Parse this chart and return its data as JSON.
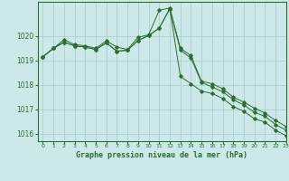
{
  "title": "Graphe pression niveau de la mer (hPa)",
  "bg_color": "#cce8e8",
  "grid_color": "#aad0d0",
  "line_color": "#2d6e2d",
  "xlim": [
    -0.5,
    23
  ],
  "ylim": [
    1015.7,
    1021.4
  ],
  "yticks": [
    1016,
    1017,
    1018,
    1019,
    1020
  ],
  "xticks": [
    0,
    1,
    2,
    3,
    4,
    5,
    6,
    7,
    8,
    9,
    10,
    11,
    12,
    13,
    14,
    15,
    16,
    17,
    18,
    19,
    20,
    21,
    22,
    23
  ],
  "series1_x": [
    0,
    1,
    2,
    3,
    4,
    5,
    6,
    7,
    8,
    9,
    10,
    11,
    12,
    13,
    14,
    15,
    16,
    17,
    18,
    19,
    20,
    21,
    22,
    23
  ],
  "series1_y": [
    1019.15,
    1019.5,
    1019.85,
    1019.65,
    1019.6,
    1019.5,
    1019.8,
    1019.55,
    1019.45,
    1019.95,
    1020.05,
    1021.05,
    1021.15,
    1019.5,
    1019.2,
    1018.15,
    1018.05,
    1017.85,
    1017.5,
    1017.3,
    1017.05,
    1016.85,
    1016.55,
    1016.3
  ],
  "series2_x": [
    0,
    1,
    2,
    3,
    4,
    5,
    6,
    7,
    8,
    9,
    10,
    11,
    12,
    13,
    14,
    15,
    16,
    17,
    18,
    19,
    20,
    21,
    22,
    23
  ],
  "series2_y": [
    1019.15,
    1019.5,
    1019.75,
    1019.6,
    1019.55,
    1019.45,
    1019.72,
    1019.38,
    1019.42,
    1019.82,
    1020.02,
    1020.32,
    1021.12,
    1019.42,
    1019.1,
    1018.1,
    1017.92,
    1017.72,
    1017.4,
    1017.18,
    1016.88,
    1016.72,
    1016.38,
    1016.15
  ],
  "series3_x": [
    0,
    1,
    2,
    3,
    4,
    5,
    6,
    7,
    8,
    9,
    10,
    11,
    12,
    13,
    14,
    15,
    16,
    17,
    18,
    19,
    20,
    21,
    22,
    23
  ],
  "series3_y": [
    1019.15,
    1019.5,
    1019.75,
    1019.6,
    1019.55,
    1019.45,
    1019.72,
    1019.38,
    1019.42,
    1019.82,
    1020.02,
    1020.32,
    1021.12,
    1018.35,
    1018.05,
    1017.75,
    1017.65,
    1017.45,
    1017.12,
    1016.92,
    1016.62,
    1016.48,
    1016.15,
    1015.92
  ]
}
